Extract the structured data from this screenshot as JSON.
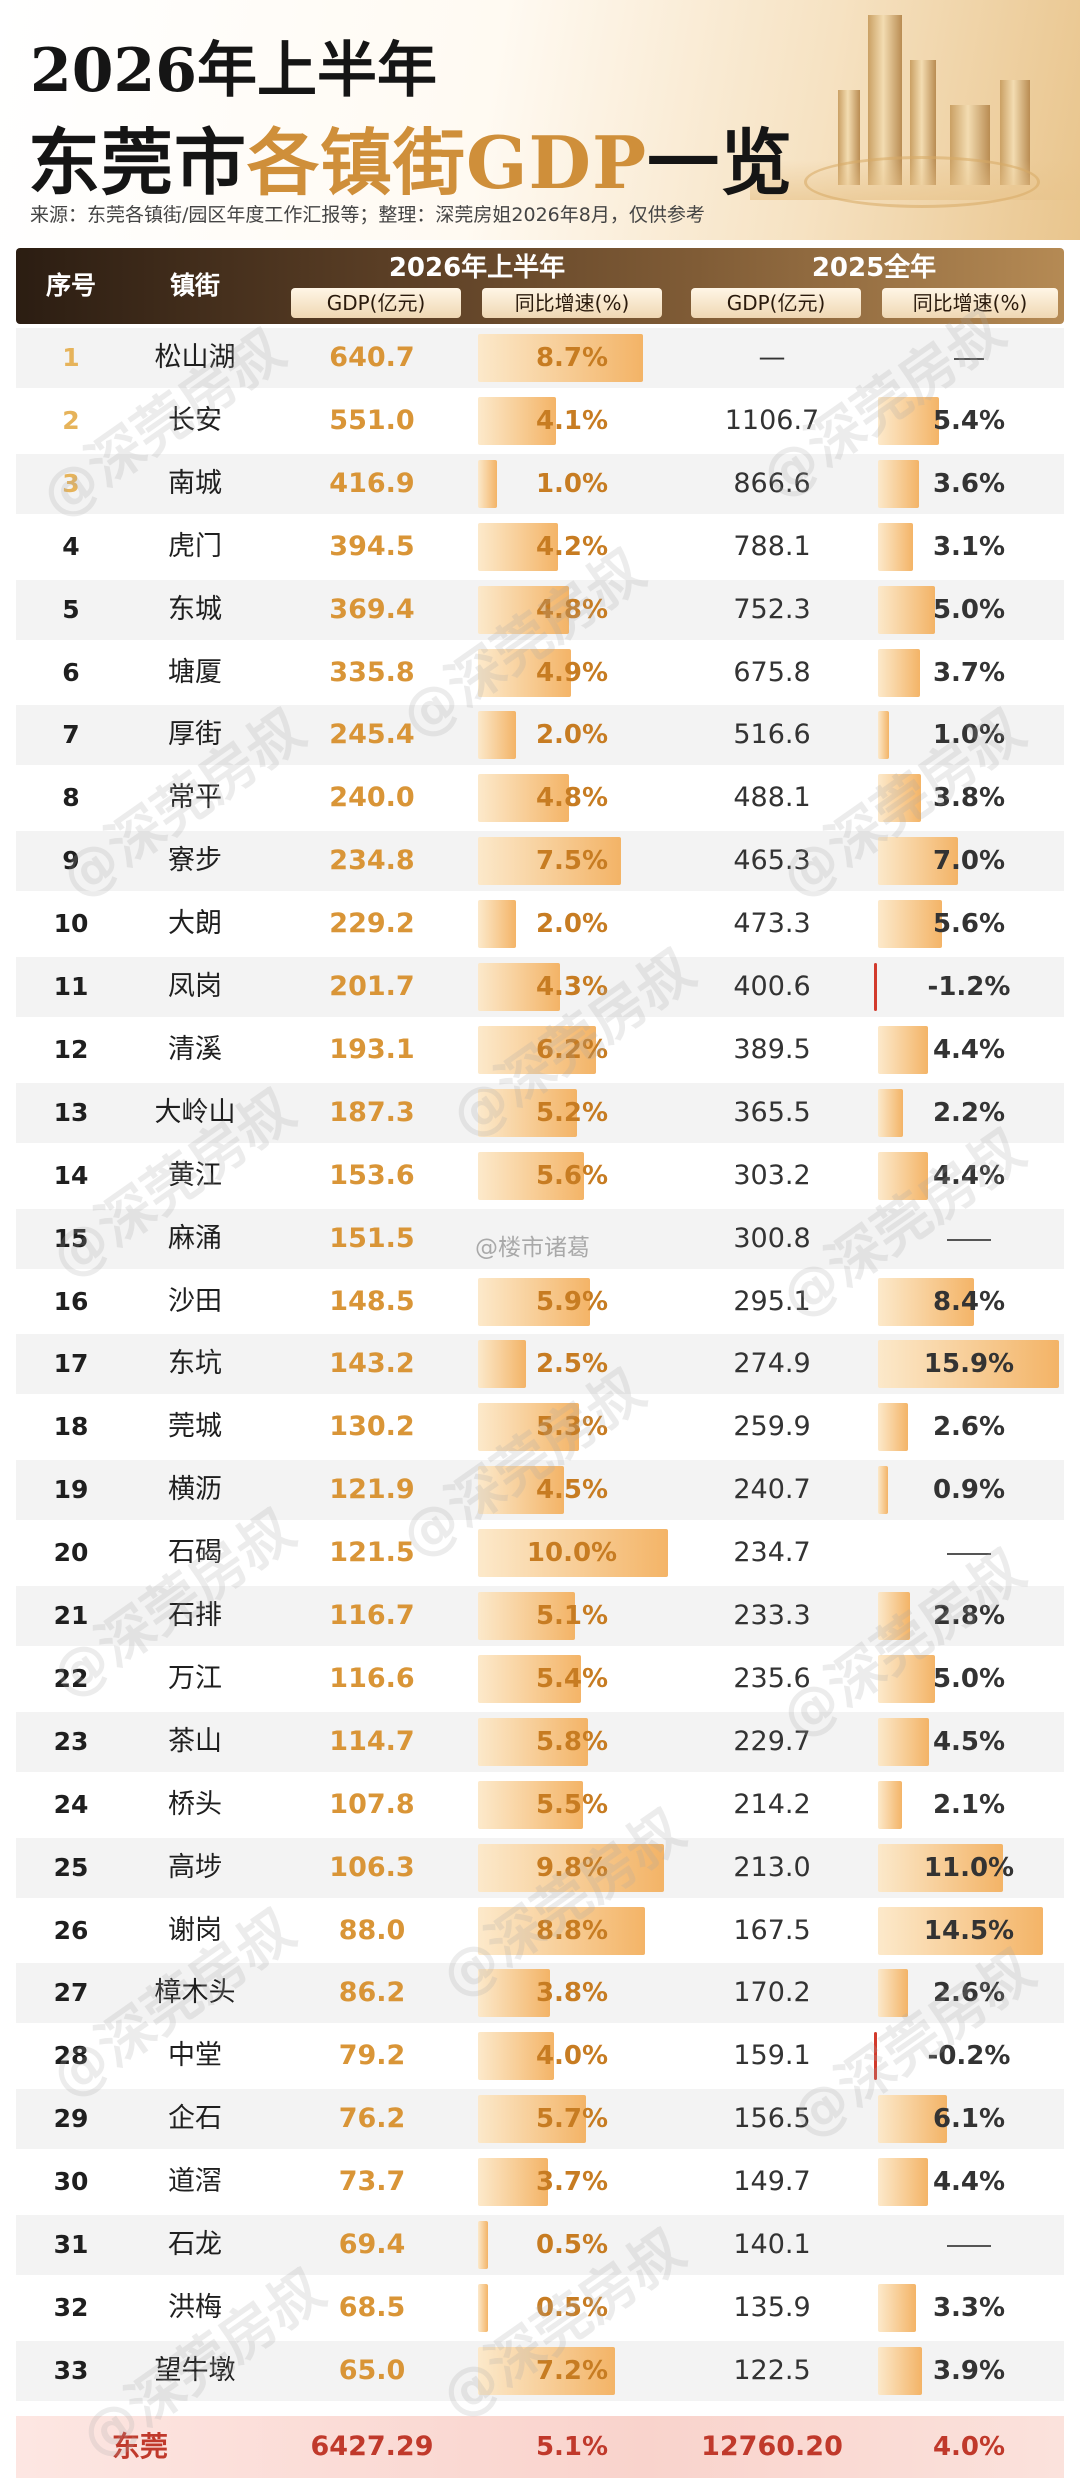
{
  "title": {
    "line1": "2026年上半年",
    "line2_plain": "东莞市",
    "line2_highlight": "各镇街GDP",
    "line2_end": "一览"
  },
  "source": "来源：东莞各镇街/园区年度工作汇报等；整理：深莞房姐2026年8月，仅供参考",
  "header": {
    "no": "序号",
    "name": "镇街",
    "group_2026": "2026年上半年",
    "group_2025": "2025全年",
    "gdp_2026": "GDP(亿元)",
    "growth_2026": "同比增速(%)",
    "gdp_2025": "GDP(亿元)",
    "growth_2025": "同比增速(%)"
  },
  "rows": [
    {
      "no": "1",
      "name": "松山湖",
      "gdp": "640.7",
      "growth": "8.7%",
      "growth_v": 8.7,
      "gdp25": "—",
      "growth25": "",
      "growth25_v": null
    },
    {
      "no": "2",
      "name": "长安",
      "gdp": "551.0",
      "growth": "4.1%",
      "growth_v": 4.1,
      "gdp25": "1106.7",
      "growth25": "5.4%",
      "growth25_v": 5.4
    },
    {
      "no": "3",
      "name": "南城",
      "gdp": "416.9",
      "growth": "1.0%",
      "growth_v": 1.0,
      "gdp25": "866.6",
      "growth25": "3.6%",
      "growth25_v": 3.6
    },
    {
      "no": "4",
      "name": "虎门",
      "gdp": "394.5",
      "growth": "4.2%",
      "growth_v": 4.2,
      "gdp25": "788.1",
      "growth25": "3.1%",
      "growth25_v": 3.1
    },
    {
      "no": "5",
      "name": "东城",
      "gdp": "369.4",
      "growth": "4.8%",
      "growth_v": 4.8,
      "gdp25": "752.3",
      "growth25": "5.0%",
      "growth25_v": 5.0
    },
    {
      "no": "6",
      "name": "塘厦",
      "gdp": "335.8",
      "growth": "4.9%",
      "growth_v": 4.9,
      "gdp25": "675.8",
      "growth25": "3.7%",
      "growth25_v": 3.7
    },
    {
      "no": "7",
      "name": "厚街",
      "gdp": "245.4",
      "growth": "2.0%",
      "growth_v": 2.0,
      "gdp25": "516.6",
      "growth25": "1.0%",
      "growth25_v": 1.0
    },
    {
      "no": "8",
      "name": "常平",
      "gdp": "240.0",
      "growth": "4.8%",
      "growth_v": 4.8,
      "gdp25": "488.1",
      "growth25": "3.8%",
      "growth25_v": 3.8
    },
    {
      "no": "9",
      "name": "寮步",
      "gdp": "234.8",
      "growth": "7.5%",
      "growth_v": 7.5,
      "gdp25": "465.3",
      "growth25": "7.0%",
      "growth25_v": 7.0
    },
    {
      "no": "10",
      "name": "大朗",
      "gdp": "229.2",
      "growth": "2.0%",
      "growth_v": 2.0,
      "gdp25": "473.3",
      "growth25": "5.6%",
      "growth25_v": 5.6
    },
    {
      "no": "11",
      "name": "凤岗",
      "gdp": "201.7",
      "growth": "4.3%",
      "growth_v": 4.3,
      "gdp25": "400.6",
      "growth25": "-1.2%",
      "growth25_v": -1.2
    },
    {
      "no": "12",
      "name": "清溪",
      "gdp": "193.1",
      "growth": "6.2%",
      "growth_v": 6.2,
      "gdp25": "389.5",
      "growth25": "4.4%",
      "growth25_v": 4.4
    },
    {
      "no": "13",
      "name": "大岭山",
      "gdp": "187.3",
      "growth": "5.2%",
      "growth_v": 5.2,
      "gdp25": "365.5",
      "growth25": "2.2%",
      "growth25_v": 2.2
    },
    {
      "no": "14",
      "name": "黄江",
      "gdp": "153.6",
      "growth": "5.6%",
      "growth_v": 5.6,
      "gdp25": "303.2",
      "growth25": "4.4%",
      "growth25_v": 4.4
    },
    {
      "no": "15",
      "name": "麻涌",
      "gdp": "151.5",
      "growth": "",
      "growth_v": null,
      "gdp25": "300.8",
      "growth25": "",
      "growth25_v": null
    },
    {
      "no": "16",
      "name": "沙田",
      "gdp": "148.5",
      "growth": "5.9%",
      "growth_v": 5.9,
      "gdp25": "295.1",
      "growth25": "8.4%",
      "growth25_v": 8.4
    },
    {
      "no": "17",
      "name": "东坑",
      "gdp": "143.2",
      "growth": "2.5%",
      "growth_v": 2.5,
      "gdp25": "274.9",
      "growth25": "15.9%",
      "growth25_v": 15.9
    },
    {
      "no": "18",
      "name": "莞城",
      "gdp": "130.2",
      "growth": "5.3%",
      "growth_v": 5.3,
      "gdp25": "259.9",
      "growth25": "2.6%",
      "growth25_v": 2.6
    },
    {
      "no": "19",
      "name": "横沥",
      "gdp": "121.9",
      "growth": "4.5%",
      "growth_v": 4.5,
      "gdp25": "240.7",
      "growth25": "0.9%",
      "growth25_v": 0.9
    },
    {
      "no": "20",
      "name": "石碣",
      "gdp": "121.5",
      "growth": "10.0%",
      "growth_v": 10.0,
      "gdp25": "234.7",
      "growth25": "",
      "growth25_v": null
    },
    {
      "no": "21",
      "name": "石排",
      "gdp": "116.7",
      "growth": "5.1%",
      "growth_v": 5.1,
      "gdp25": "233.3",
      "growth25": "2.8%",
      "growth25_v": 2.8
    },
    {
      "no": "22",
      "name": "万江",
      "gdp": "116.6",
      "growth": "5.4%",
      "growth_v": 5.4,
      "gdp25": "235.6",
      "growth25": "5.0%",
      "growth25_v": 5.0
    },
    {
      "no": "23",
      "name": "茶山",
      "gdp": "114.7",
      "growth": "5.8%",
      "growth_v": 5.8,
      "gdp25": "229.7",
      "growth25": "4.5%",
      "growth25_v": 4.5
    },
    {
      "no": "24",
      "name": "桥头",
      "gdp": "107.8",
      "growth": "5.5%",
      "growth_v": 5.5,
      "gdp25": "214.2",
      "growth25": "2.1%",
      "growth25_v": 2.1
    },
    {
      "no": "25",
      "name": "高埗",
      "gdp": "106.3",
      "growth": "9.8%",
      "growth_v": 9.8,
      "gdp25": "213.0",
      "growth25": "11.0%",
      "growth25_v": 11.0
    },
    {
      "no": "26",
      "name": "谢岗",
      "gdp": "88.0",
      "growth": "8.8%",
      "growth_v": 8.8,
      "gdp25": "167.5",
      "growth25": "14.5%",
      "growth25_v": 14.5
    },
    {
      "no": "27",
      "name": "樟木头",
      "gdp": "86.2",
      "growth": "3.8%",
      "growth_v": 3.8,
      "gdp25": "170.2",
      "growth25": "2.6%",
      "growth25_v": 2.6
    },
    {
      "no": "28",
      "name": "中堂",
      "gdp": "79.2",
      "growth": "4.0%",
      "growth_v": 4.0,
      "gdp25": "159.1",
      "growth25": "-0.2%",
      "growth25_v": -0.2
    },
    {
      "no": "29",
      "name": "企石",
      "gdp": "76.2",
      "growth": "5.7%",
      "growth_v": 5.7,
      "gdp25": "156.5",
      "growth25": "6.1%",
      "growth25_v": 6.1
    },
    {
      "no": "30",
      "name": "道滘",
      "gdp": "73.7",
      "growth": "3.7%",
      "growth_v": 3.7,
      "gdp25": "149.7",
      "growth25": "4.4%",
      "growth25_v": 4.4
    },
    {
      "no": "31",
      "name": "石龙",
      "gdp": "69.4",
      "growth": "0.5%",
      "growth_v": 0.5,
      "gdp25": "140.1",
      "growth25": "",
      "growth25_v": null
    },
    {
      "no": "32",
      "name": "洪梅",
      "gdp": "68.5",
      "growth": "0.5%",
      "growth_v": 0.5,
      "gdp25": "135.9",
      "growth25": "3.3%",
      "growth25_v": 3.3
    },
    {
      "no": "33",
      "name": "望牛墩",
      "gdp": "65.0",
      "growth": "7.2%",
      "growth_v": 7.2,
      "gdp25": "122.5",
      "growth25": "3.9%",
      "growth25_v": 3.9
    }
  ],
  "total": {
    "name": "东莞",
    "gdp": "6427.29",
    "growth": "5.1%",
    "gdp25": "12760.20",
    "growth25": "4.0%"
  },
  "watermark": "@深莞房叔",
  "weibo_mark": "@楼市诸葛",
  "colors": {
    "accent": "#d99537",
    "bar": "#f3b05f",
    "negative": "#d23a2c",
    "total": "#c0392b",
    "header_dark": "#2b1d12"
  }
}
